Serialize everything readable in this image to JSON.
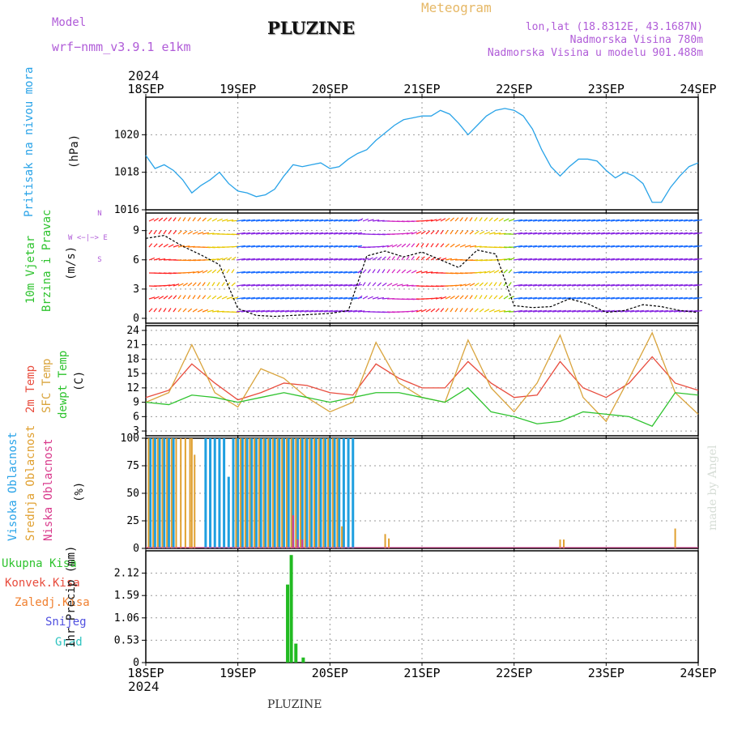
{
  "header": {
    "model_label": "Model",
    "model_value": "wrf−nmm_v3.9.1  e1km",
    "station": "PLUZINE",
    "meteogram_label": "Meteogram",
    "lonlat": "lon,lat (18.8312E, 43.1687N)",
    "altitude": "Nadmorska Visina 780m",
    "model_altitude": "Nadmorska Visina u modelu 901.488m",
    "year_top": "2024",
    "year_bottom": "2024",
    "footer_station": "PLUZINE",
    "watermark": "made by Angel"
  },
  "colors": {
    "pressure": "#29a3e8",
    "temp2m": "#e84c3d",
    "sfc_temp": "#d9a43c",
    "dewpoint": "#2ec32e",
    "high_cloud": "#1f9fe0",
    "mid_cloud": "#e0a030",
    "low_cloud": "#d93a8c",
    "precip_total": "#22bb22",
    "violet": "#b05cd8"
  },
  "panels": {
    "pressure": {
      "label1": "Pritisak na nivou mora",
      "unit": "(hPa)"
    },
    "wind": {
      "label1": "10m Vjetar",
      "label2": "Brzina i Pravac",
      "unit": "(m/s)",
      "compass_top": "N",
      "compass_we": "W <−|−> E",
      "compass_bottom": "S"
    },
    "temp": {
      "label1": "2m Temp",
      "label2": "SFC Temp",
      "label3": "dewpt Temp",
      "unit": "(C)"
    },
    "cloud": {
      "label1": "Visoka Oblacnost",
      "label2": "Srednja Oblacnost",
      "label3": "Niska Oblacnost",
      "unit": "(%)"
    },
    "precip": {
      "label1": "Ukupna Kisa",
      "label2": "Konvek.Kisa",
      "label3": "Zaledj.Kisa",
      "label4": "Snijeg",
      "label5": "Grad",
      "unit": "1hr Precip (mm)"
    }
  },
  "chart_data": [
    {
      "type": "line",
      "x_categories": [
        "18SEP",
        "19SEP",
        "20SEP",
        "21SEP",
        "22SEP",
        "23SEP",
        "24SEP"
      ],
      "ylim": [
        1016,
        1022
      ],
      "ytick_labels": [
        "1016",
        "1018",
        "1020"
      ],
      "series": [
        {
          "x": [
            0,
            0.1,
            0.2,
            0.3,
            0.4,
            0.5,
            0.6,
            0.7,
            0.8,
            0.9,
            1.0,
            1.1,
            1.2,
            1.3,
            1.4,
            1.5,
            1.6,
            1.7,
            1.8,
            1.9,
            2.0,
            2.1,
            2.2,
            2.3,
            2.4,
            2.5,
            2.6,
            2.7,
            2.8,
            2.9,
            3.0,
            3.1,
            3.2,
            3.3,
            3.4,
            3.5,
            3.6,
            3.7,
            3.8,
            3.9,
            4.0,
            4.1,
            4.2,
            4.3,
            4.4,
            4.5,
            4.6,
            4.7,
            4.8,
            4.9,
            5.0,
            5.1,
            5.2,
            5.3,
            5.4,
            5.5,
            5.6,
            5.7,
            5.8,
            5.9,
            6.0
          ],
          "y": [
            1018.9,
            1018.2,
            1018.4,
            1018.1,
            1017.6,
            1016.9,
            1017.3,
            1017.6,
            1018.0,
            1017.4,
            1017.0,
            1016.9,
            1016.7,
            1016.8,
            1017.1,
            1017.8,
            1018.4,
            1018.3,
            1018.4,
            1018.5,
            1018.2,
            1018.3,
            1018.7,
            1019.0,
            1019.2,
            1019.7,
            1020.1,
            1020.5,
            1020.8,
            1020.9,
            1021.0,
            1021.0,
            1021.3,
            1021.1,
            1020.6,
            1020.0,
            1020.5,
            1021.0,
            1021.3,
            1021.4,
            1021.3,
            1021.0,
            1020.3,
            1019.2,
            1018.3,
            1017.8,
            1018.3,
            1018.7,
            1018.7,
            1018.6,
            1018.1,
            1017.7,
            1018.0,
            1017.8,
            1017.4,
            1016.4,
            1016.4,
            1017.2,
            1017.8,
            1018.3,
            1018.5
          ]
        }
      ]
    },
    {
      "type": "line",
      "x_categories": [
        "18SEP",
        "19SEP",
        "20SEP",
        "21SEP",
        "22SEP",
        "23SEP",
        "24SEP"
      ],
      "ylim": [
        -0.5,
        10.8
      ],
      "ytick_labels": [
        "0",
        "3",
        "6",
        "9"
      ],
      "series": [
        {
          "x": [
            0,
            0.2,
            0.4,
            0.6,
            0.8,
            1.0,
            1.2,
            1.4,
            1.6,
            1.8,
            2.0,
            2.2,
            2.4,
            2.6,
            2.8,
            3.0,
            3.2,
            3.4,
            3.6,
            3.8,
            4.0,
            4.2,
            4.4,
            4.6,
            4.8,
            5.0,
            5.2,
            5.4,
            5.6,
            5.8,
            6.0
          ],
          "y": [
            8.2,
            8.5,
            7.4,
            6.5,
            5.5,
            1.0,
            0.3,
            0.2,
            0.3,
            0.4,
            0.5,
            0.8,
            6.4,
            6.9,
            6.3,
            6.8,
            6.0,
            5.2,
            7.0,
            6.6,
            1.3,
            1.1,
            1.2,
            2.0,
            1.5,
            0.6,
            0.8,
            1.4,
            1.2,
            0.8,
            0.6
          ]
        }
      ]
    },
    {
      "type": "line",
      "x_categories": [
        "18SEP",
        "19SEP",
        "20SEP",
        "21SEP",
        "22SEP",
        "23SEP",
        "24SEP"
      ],
      "ylim": [
        2,
        25
      ],
      "ytick_labels": [
        "3",
        "6",
        "9",
        "12",
        "15",
        "18",
        "21",
        "24"
      ],
      "series": [
        {
          "name": "2m Temp",
          "x": [
            0,
            0.25,
            0.5,
            0.75,
            1.0,
            1.25,
            1.5,
            1.75,
            2.0,
            2.25,
            2.5,
            2.75,
            3.0,
            3.25,
            3.5,
            3.75,
            4.0,
            4.25,
            4.5,
            4.75,
            5.0,
            5.25,
            5.5,
            5.75,
            6.0
          ],
          "y": [
            10,
            11.5,
            17,
            13,
            9.5,
            11,
            13,
            12.5,
            11,
            10.5,
            17,
            14,
            12,
            12,
            17.5,
            13,
            10,
            10.5,
            17.5,
            12,
            10,
            13,
            18.5,
            13,
            11.5
          ]
        },
        {
          "name": "SFC Temp",
          "x": [
            0,
            0.25,
            0.5,
            0.75,
            1.0,
            1.25,
            1.5,
            1.75,
            2.0,
            2.25,
            2.5,
            2.75,
            3.0,
            3.25,
            3.5,
            3.75,
            4.0,
            4.25,
            4.5,
            4.75,
            5.0,
            5.25,
            5.5,
            5.75,
            6.0
          ],
          "y": [
            9,
            11,
            21,
            11,
            8,
            16,
            14,
            10,
            7,
            9,
            21.5,
            13,
            10,
            9,
            22,
            12,
            7,
            13,
            23,
            10,
            5,
            14,
            23.5,
            11,
            6.5
          ]
        },
        {
          "name": "dewpt Temp",
          "x": [
            0,
            0.25,
            0.5,
            0.75,
            1.0,
            1.25,
            1.5,
            1.75,
            2.0,
            2.25,
            2.5,
            2.75,
            3.0,
            3.25,
            3.5,
            3.75,
            4.0,
            4.25,
            4.5,
            4.75,
            5.0,
            5.25,
            5.5,
            5.75,
            6.0
          ],
          "y": [
            9,
            8.5,
            10.5,
            10,
            9,
            10,
            11,
            10,
            9,
            10,
            11,
            11,
            10,
            9,
            12,
            7,
            6,
            4.5,
            5,
            7,
            6.5,
            6,
            4,
            11,
            10.5
          ]
        }
      ]
    },
    {
      "type": "bar",
      "x_categories": [
        "18SEP",
        "19SEP",
        "20SEP",
        "21SEP",
        "22SEP",
        "23SEP",
        "24SEP"
      ],
      "ylim": [
        0,
        100
      ],
      "ytick_labels": [
        "0",
        "25",
        "50",
        "75",
        "100"
      ],
      "series": [
        {
          "name": "Visoka Oblacnost",
          "x": [
            0.05,
            0.1,
            0.15,
            0.2,
            0.25,
            0.3,
            0.65,
            0.7,
            0.75,
            0.8,
            0.85,
            0.9,
            0.95,
            1.0,
            1.05,
            1.1,
            1.15,
            1.2,
            1.25,
            1.3,
            1.35,
            1.4,
            1.45,
            1.5,
            1.55,
            1.6,
            1.65,
            1.7,
            1.75,
            1.8,
            1.85,
            1.9,
            1.95,
            2.0,
            2.05,
            2.1,
            2.15,
            2.2,
            2.25
          ],
          "values": [
            100,
            100,
            100,
            100,
            100,
            100,
            100,
            100,
            100,
            100,
            100,
            65,
            100,
            100,
            100,
            100,
            100,
            100,
            100,
            100,
            100,
            100,
            100,
            100,
            100,
            100,
            100,
            100,
            100,
            100,
            100,
            100,
            100,
            100,
            100,
            100,
            100,
            100,
            100
          ]
        },
        {
          "name": "Srednja Oblacnost",
          "x": [
            0.03,
            0.08,
            0.13,
            0.18,
            0.23,
            0.28,
            0.33,
            0.38,
            0.43,
            0.48,
            0.5,
            0.53,
            0.98,
            1.03,
            1.08,
            1.13,
            1.18,
            1.23,
            1.28,
            1.33,
            1.38,
            1.43,
            1.48,
            1.53,
            1.58,
            1.63,
            1.68,
            1.73,
            1.78,
            1.83,
            1.88,
            1.93,
            1.98,
            2.03,
            2.08,
            2.13,
            2.6,
            2.64,
            4.5,
            4.54,
            5.75
          ],
          "values": [
            100,
            100,
            100,
            100,
            100,
            100,
            100,
            100,
            100,
            100,
            100,
            85,
            100,
            100,
            100,
            100,
            100,
            100,
            100,
            100,
            100,
            100,
            100,
            100,
            100,
            100,
            100,
            100,
            100,
            100,
            100,
            100,
            100,
            100,
            100,
            20,
            13,
            9,
            8,
            8,
            18
          ]
        },
        {
          "name": "Niska Oblacnost",
          "x": [
            1.6,
            1.65,
            1.7
          ],
          "values": [
            30,
            8,
            8
          ]
        }
      ]
    },
    {
      "type": "bar",
      "x_categories": [
        "18SEP",
        "19SEP",
        "20SEP",
        "21SEP",
        "22SEP",
        "23SEP",
        "24SEP"
      ],
      "ylim": [
        0,
        2.65
      ],
      "ytick_labels": [
        "0",
        "0.53",
        "1.06",
        "1.59",
        "2.12"
      ],
      "series": [
        {
          "name": "Ukupna Kisa",
          "x": [
            1.54,
            1.58,
            1.63,
            1.71
          ],
          "values": [
            1.85,
            2.55,
            0.45,
            0.12
          ]
        }
      ]
    }
  ]
}
